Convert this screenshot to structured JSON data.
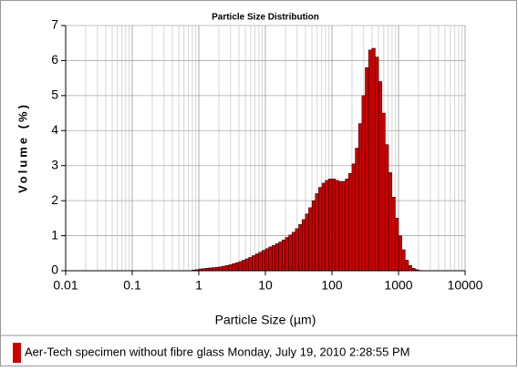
{
  "chart_data": {
    "type": "histogram",
    "title": "Particle Size Distribution",
    "xlabel": "Particle Size (µm)",
    "ylabel": "Volume (%)",
    "xscale": "log",
    "grid": true,
    "xlim": [
      0.01,
      10000
    ],
    "xticks": [
      0.01,
      0.1,
      1,
      10,
      100,
      1000,
      10000
    ],
    "ylim": [
      0,
      7
    ],
    "yticks": [
      0,
      1,
      2,
      3,
      4,
      5,
      6,
      7
    ],
    "series": [
      {
        "name": "Aer-Tech specimen without fibre glass Monday, July 19, 2010 2:28:55 PM",
        "color": "#cc0000",
        "bins": [
          0.794,
          0.891,
          1,
          1.122,
          1.259,
          1.413,
          1.585,
          1.778,
          1.995,
          2.239,
          2.512,
          2.818,
          3.162,
          3.548,
          3.981,
          4.467,
          5.012,
          5.623,
          6.31,
          7.079,
          7.943,
          8.913,
          10,
          11.22,
          12.59,
          14.13,
          15.85,
          17.78,
          19.95,
          22.39,
          25.12,
          28.18,
          31.62,
          35.48,
          39.81,
          44.67,
          50.12,
          56.23,
          63.1,
          70.79,
          79.43,
          89.13,
          100,
          112.2,
          125.9,
          141.3,
          158.5,
          177.8,
          199.5,
          223.9,
          251.2,
          281.8,
          316.2,
          354.8,
          398.1,
          446.7,
          501.2,
          562.3,
          631,
          707.9,
          794.3,
          891.3,
          1000,
          1122,
          1259,
          1413,
          1585,
          1778,
          1995,
          2239
        ],
        "values": [
          0.02,
          0.03,
          0.05,
          0.06,
          0.07,
          0.08,
          0.09,
          0.1,
          0.11,
          0.13,
          0.15,
          0.17,
          0.2,
          0.23,
          0.26,
          0.3,
          0.34,
          0.38,
          0.43,
          0.48,
          0.53,
          0.58,
          0.63,
          0.68,
          0.72,
          0.77,
          0.82,
          0.88,
          0.95,
          1.02,
          1.1,
          1.2,
          1.32,
          1.46,
          1.62,
          1.8,
          2.0,
          2.2,
          2.38,
          2.5,
          2.58,
          2.62,
          2.62,
          2.58,
          2.55,
          2.55,
          2.62,
          2.78,
          3.05,
          3.5,
          4.2,
          5.0,
          5.8,
          6.3,
          6.35,
          6.1,
          5.4,
          4.5,
          3.6,
          2.8,
          2.1,
          1.5,
          1.0,
          0.6,
          0.3,
          0.15,
          0.07,
          0.03,
          0.01
        ]
      }
    ]
  }
}
